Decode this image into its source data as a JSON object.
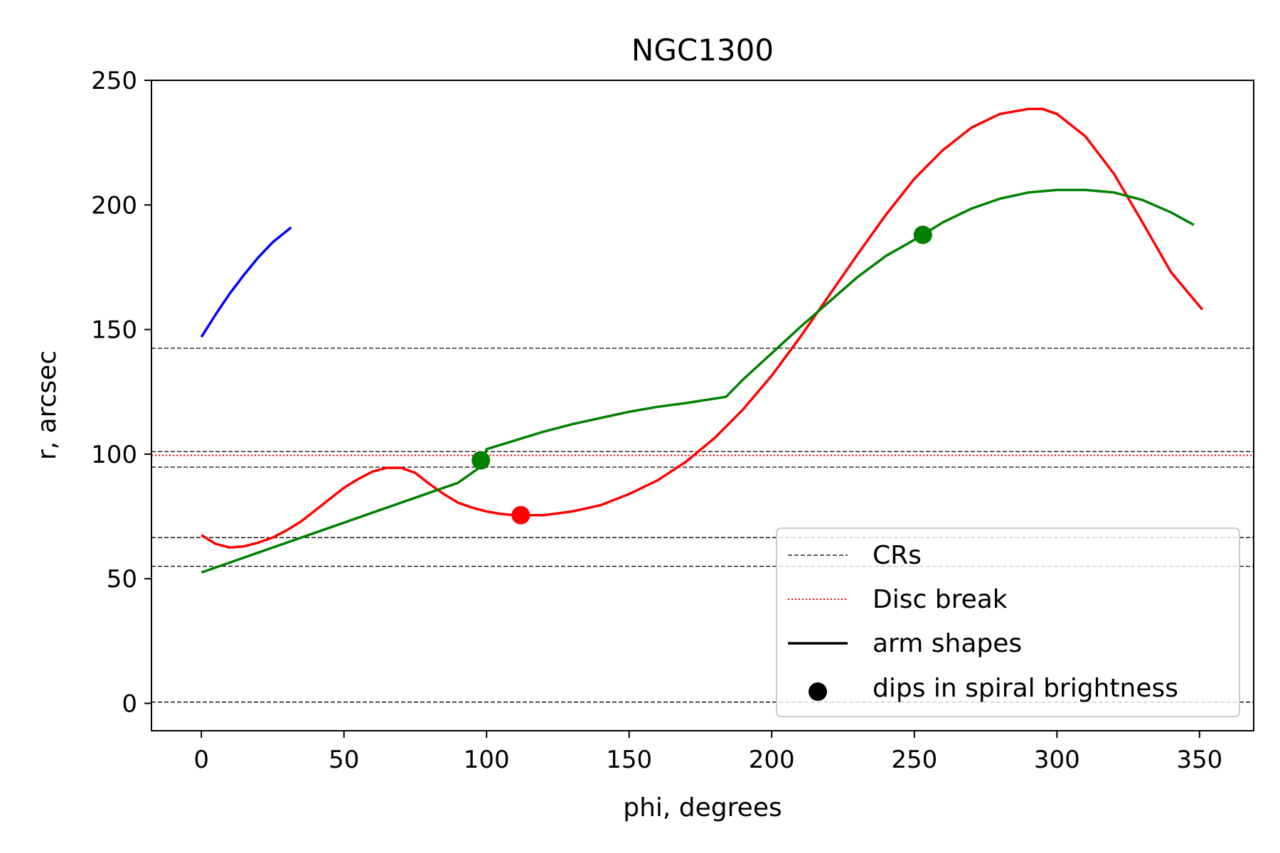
{
  "chart_data": {
    "type": "line",
    "title": "NGC1300",
    "xlabel": "phi, degrees",
    "ylabel": "r, arcsec",
    "xlim": [
      -17.5,
      369
    ],
    "ylim": [
      -11,
      250
    ],
    "xticks": [
      0,
      50,
      100,
      150,
      200,
      250,
      300,
      350
    ],
    "yticks": [
      0,
      50,
      100,
      150,
      200,
      250
    ],
    "grid": false,
    "legend_position": "lower-right",
    "legend": [
      {
        "label": "CRs",
        "style": "dashed-line",
        "color": "#000000"
      },
      {
        "label": "Disc break",
        "style": "dotted-line",
        "color": "#ff0000"
      },
      {
        "label": "arm shapes",
        "style": "solid-line",
        "color": "#000000"
      },
      {
        "label": "dips in spiral brightness",
        "style": "marker",
        "color": "#000000"
      }
    ],
    "cr_lines": {
      "color": "#000000",
      "values": [
        142.5,
        101,
        94.8,
        66.5,
        55,
        0.5
      ]
    },
    "disc_break_lines": {
      "color": "#ff0000",
      "values": [
        99.5
      ]
    },
    "series": [
      {
        "color": "#0000ff",
        "x": [
          0,
          5,
          10,
          15,
          20,
          25,
          31.5
        ],
        "y": [
          147,
          156,
          164.5,
          172,
          179,
          185,
          191
        ]
      },
      {
        "color": "#ff0000",
        "x": [
          0,
          5,
          10,
          15,
          20,
          25,
          30,
          35,
          40,
          45,
          50,
          55,
          60,
          65,
          70,
          75,
          80,
          85,
          90,
          95,
          100,
          105,
          110,
          115,
          120,
          130,
          140,
          150,
          160,
          170,
          180,
          190,
          200,
          210,
          220,
          230,
          240,
          250,
          260,
          270,
          280,
          290,
          295,
          300,
          310,
          320,
          330,
          340,
          351
        ],
        "y": [
          67.5,
          64,
          62.5,
          63,
          64.5,
          66.5,
          69.5,
          73,
          77.5,
          82,
          86.5,
          90,
          93,
          94.5,
          94.5,
          92.5,
          88,
          84,
          80.5,
          78.5,
          77,
          76,
          75.5,
          75.5,
          75.5,
          77,
          79.5,
          84,
          89.5,
          97,
          106.5,
          118,
          131.5,
          147,
          163.5,
          180,
          196,
          210.5,
          222,
          231,
          236.5,
          238.5,
          238.5,
          236.5,
          227.5,
          212.5,
          193,
          173,
          158
        ]
      },
      {
        "color": "#008000",
        "x": [
          0,
          10,
          20,
          30,
          40,
          50,
          60,
          70,
          80,
          90,
          98,
          100,
          110,
          120,
          130,
          140,
          150,
          160,
          170,
          184,
          190,
          200,
          210,
          220,
          230,
          240,
          250,
          253,
          260,
          270,
          280,
          290,
          300,
          310,
          320,
          330,
          340,
          348
        ],
        "y": [
          52.5,
          56.5,
          60.5,
          64.5,
          68.5,
          72.5,
          76.5,
          80.5,
          84.5,
          88.5,
          95,
          102,
          105.5,
          109,
          112,
          114.5,
          117,
          119,
          120.5,
          123,
          130,
          140.5,
          151,
          161,
          171,
          179.5,
          186,
          188,
          193,
          198.5,
          202.5,
          205,
          206,
          206,
          205,
          202,
          197,
          192
        ]
      }
    ],
    "dips": [
      {
        "x": 98,
        "y": 97.5,
        "color": "#008000"
      },
      {
        "x": 112,
        "y": 75.5,
        "color": "#ff0000"
      },
      {
        "x": 253,
        "y": 188,
        "color": "#008000"
      }
    ]
  }
}
